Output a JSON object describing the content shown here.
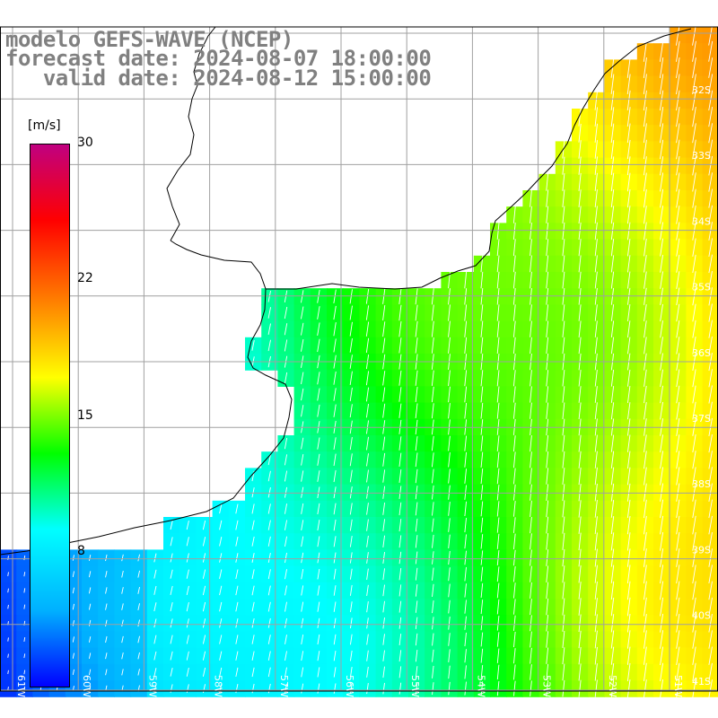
{
  "title": {
    "line1": "modelo GEFS-WAVE (NCEP)",
    "line2": "forecast date: 2024-08-07 18:00:00",
    "line3": "   valid date: 2024-08-12 15:00:00"
  },
  "colorbar": {
    "unit": "[m/s]",
    "ticks": [
      "30",
      "22",
      "15",
      "8"
    ],
    "range": [
      0,
      30
    ],
    "colors": [
      "#0000ff",
      "#00b0ff",
      "#00ffff",
      "#00ff00",
      "#ffff00",
      "#ff8000",
      "#ff0000",
      "#c00080"
    ]
  },
  "map": {
    "lat_labels": [
      "32S",
      "33S",
      "34S",
      "35S",
      "36S",
      "37S",
      "38S",
      "39S",
      "40S",
      "41S"
    ],
    "lon_labels": [
      "61W",
      "60W",
      "59W",
      "58W",
      "57W",
      "56W",
      "55W",
      "54W",
      "53W",
      "52W",
      "51W"
    ],
    "land_color": "#ffffff",
    "grid_color": "#a0a0a0",
    "arrow_color": "#ffffff"
  }
}
